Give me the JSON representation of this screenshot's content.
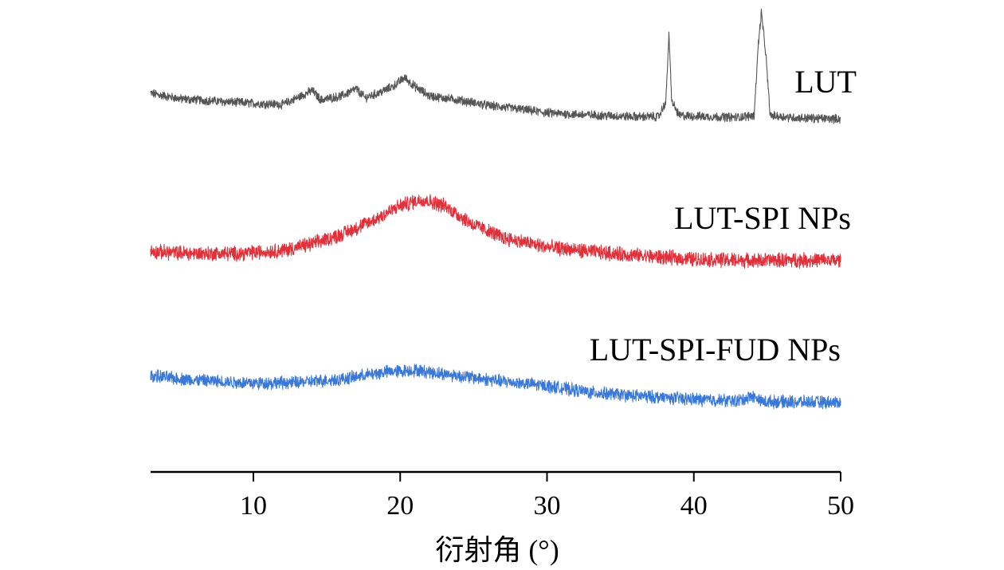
{
  "chart_data": {
    "type": "line",
    "title": "",
    "xlabel": "衍射角 (°)",
    "ylabel": "",
    "xlim": [
      3,
      50
    ],
    "xticks": [
      10,
      20,
      30,
      40,
      50
    ],
    "xtick_labels": [
      "10",
      "20",
      "30",
      "40",
      "50"
    ],
    "grid": false,
    "legend": "inline labels at right of each trace",
    "series": [
      {
        "name": "LUT",
        "color": "#555555",
        "noise": 0.07,
        "points": [
          [
            3,
            0.5
          ],
          [
            5,
            0.4
          ],
          [
            8,
            0.35
          ],
          [
            10,
            0.32
          ],
          [
            12,
            0.3
          ],
          [
            13,
            0.42
          ],
          [
            14,
            0.55
          ],
          [
            14.6,
            0.38
          ],
          [
            16,
            0.45
          ],
          [
            17,
            0.58
          ],
          [
            17.6,
            0.42
          ],
          [
            18.5,
            0.5
          ],
          [
            19.5,
            0.62
          ],
          [
            20.3,
            0.78
          ],
          [
            21,
            0.62
          ],
          [
            22,
            0.45
          ],
          [
            24,
            0.38
          ],
          [
            26,
            0.28
          ],
          [
            28,
            0.22
          ],
          [
            30,
            0.15
          ],
          [
            32,
            0.12
          ],
          [
            34,
            0.1
          ],
          [
            36,
            0.08
          ],
          [
            37.6,
            0.08
          ],
          [
            38.1,
            0.35
          ],
          [
            38.3,
            1.55
          ],
          [
            38.5,
            0.35
          ],
          [
            39,
            0.1
          ],
          [
            41,
            0.08
          ],
          [
            43,
            0.07
          ],
          [
            44.1,
            0.1
          ],
          [
            44.4,
            1.4
          ],
          [
            44.6,
            1.95
          ],
          [
            44.9,
            1.2
          ],
          [
            45.2,
            0.1
          ],
          [
            47,
            0.06
          ],
          [
            50,
            0.04
          ]
        ]
      },
      {
        "name": "LUT-SPI NPs",
        "color": "#E0303A",
        "noise": 0.1,
        "points": [
          [
            3,
            0.18
          ],
          [
            6,
            0.15
          ],
          [
            9,
            0.15
          ],
          [
            12,
            0.2
          ],
          [
            14,
            0.3
          ],
          [
            16,
            0.45
          ],
          [
            18,
            0.65
          ],
          [
            20,
            0.9
          ],
          [
            21.5,
            1.0
          ],
          [
            23,
            0.9
          ],
          [
            25,
            0.6
          ],
          [
            27,
            0.4
          ],
          [
            30,
            0.25
          ],
          [
            33,
            0.18
          ],
          [
            36,
            0.12
          ],
          [
            40,
            0.06
          ],
          [
            44,
            0.04
          ],
          [
            47,
            0.05
          ],
          [
            50,
            0.04
          ]
        ]
      },
      {
        "name": "LUT-SPI-FUD NPs",
        "color": "#3A78D8",
        "noise": 0.1,
        "points": [
          [
            3,
            0.48
          ],
          [
            6,
            0.4
          ],
          [
            10,
            0.35
          ],
          [
            13,
            0.36
          ],
          [
            16,
            0.42
          ],
          [
            19,
            0.55
          ],
          [
            21,
            0.58
          ],
          [
            24,
            0.48
          ],
          [
            27,
            0.38
          ],
          [
            30,
            0.3
          ],
          [
            33,
            0.18
          ],
          [
            36,
            0.12
          ],
          [
            40,
            0.06
          ],
          [
            43,
            0.03
          ],
          [
            44,
            0.12
          ],
          [
            44.6,
            0.02
          ],
          [
            47,
            0.01
          ],
          [
            50,
            0.0
          ]
        ]
      }
    ]
  }
}
